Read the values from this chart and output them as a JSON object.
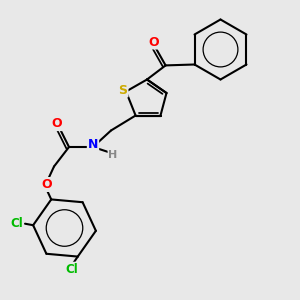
{
  "bg_color": "#e8e8e8",
  "bond_color": "#000000",
  "atom_colors": {
    "O": "#ff0000",
    "N": "#0000ff",
    "S": "#ccaa00",
    "Cl": "#00bb00",
    "H": "#888888",
    "C": "#000000"
  },
  "figsize": [
    3.0,
    3.0
  ],
  "dpi": 100,
  "lw": 1.5,
  "lw_inner": 0.9
}
